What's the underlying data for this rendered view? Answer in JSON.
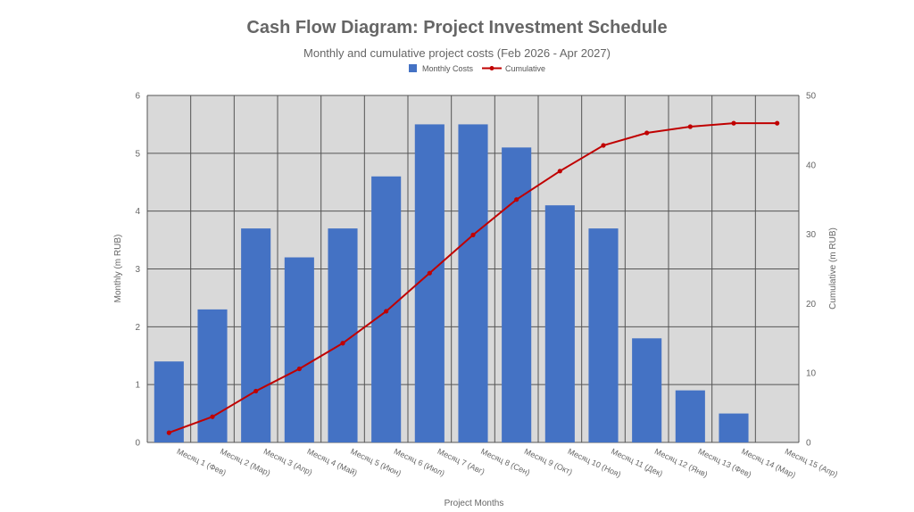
{
  "chart_data": {
    "type": "bar",
    "title": "Cash Flow Diagram: Project Investment Schedule",
    "subtitle": "Monthly and cumulative project costs (Feb 2026 - Apr 2027)",
    "xlabel": "Project Months",
    "ylabel": "Monthly (m RUB)",
    "y2label": "Cumulative (m RUB)",
    "categories": [
      "Месяц 1 (Фев)",
      "Месяц 2 (Мар)",
      "Месяц 3 (Апр)",
      "Месяц 4 (Май)",
      "Месяц 5 (Июн)",
      "Месяц 6 (Июл)",
      "Месяц 7 (Авг)",
      "Месяц 8 (Сен)",
      "Месяц 9 (Окт)",
      "Месяц 10 (Ноя)",
      "Месяц 11 (Дек)",
      "Месяц 12 (Янв)",
      "Месяц 13 (Фев)",
      "Месяц 14 (Мар)",
      "Месяц 15 (Апр)"
    ],
    "series": [
      {
        "name": "Monthly Costs",
        "type": "bar",
        "axis": "left",
        "color": "#4472c4",
        "values": [
          1.4,
          2.3,
          3.7,
          3.2,
          3.7,
          4.6,
          5.5,
          5.5,
          5.1,
          4.1,
          3.7,
          1.8,
          0.9,
          0.5,
          0
        ]
      },
      {
        "name": "Cumulative",
        "type": "line",
        "axis": "right",
        "color": "#c00000",
        "values": [
          1.4,
          3.7,
          7.4,
          10.6,
          14.3,
          18.9,
          24.4,
          29.9,
          35.0,
          39.1,
          42.8,
          44.6,
          45.5,
          46.0,
          46.0
        ]
      }
    ],
    "ylim": [
      0,
      6
    ],
    "yticks": [
      0,
      1,
      2,
      3,
      4,
      5,
      6
    ],
    "y2lim": [
      0,
      50
    ],
    "y2ticks": [
      0,
      10,
      20,
      30,
      40,
      50
    ],
    "grid": true,
    "legend_position": "top-center",
    "plot_background": "#d9d9d9",
    "grid_color": "#555555"
  }
}
